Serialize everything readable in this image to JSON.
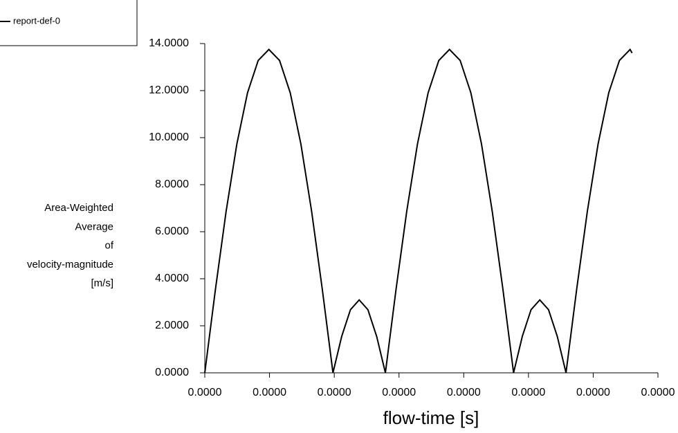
{
  "chart_data": {
    "type": "line",
    "xlabel": "flow-time [s]",
    "ylabel": [
      "Area-Weighted",
      "Average",
      "of",
      "velocity-magnitude",
      "[m/s]"
    ],
    "x": [
      0,
      1.65e-06,
      3.3e-06,
      4.95e-06,
      6.6e-06,
      8.25e-06,
      9.9e-06,
      1.155e-05,
      1.32e-05,
      1.485e-05,
      1.65e-05,
      1.815e-05,
      1.98e-05,
      2.115e-05,
      2.25e-05,
      2.385e-05,
      2.52e-05,
      2.655e-05,
      2.79e-05,
      2.955e-05,
      3.12e-05,
      3.285e-05,
      3.45e-05,
      3.615e-05,
      3.78e-05,
      3.945e-05,
      4.11e-05,
      4.275e-05,
      4.44e-05,
      4.605e-05,
      4.77e-05,
      4.905e-05,
      5.04e-05,
      5.175e-05,
      5.31e-05,
      5.445e-05,
      5.58e-05,
      5.745e-05,
      5.91e-05,
      6.075e-05,
      6.24e-05,
      6.405e-05,
      6.57e-05,
      6.6e-05
    ],
    "series": [
      {
        "name": "report-def-0",
        "color": "#000000",
        "values": [
          0,
          3.559,
          6.875,
          9.723,
          11.908,
          13.281,
          13.75,
          13.281,
          11.908,
          9.723,
          6.875,
          3.559,
          0,
          1.55,
          2.685,
          3.1,
          2.685,
          1.55,
          0,
          3.559,
          6.875,
          9.723,
          11.908,
          13.281,
          13.75,
          13.281,
          11.908,
          9.723,
          6.875,
          3.559,
          0,
          1.55,
          2.685,
          3.1,
          2.685,
          1.55,
          0,
          3.559,
          6.875,
          9.723,
          11.908,
          13.281,
          13.75,
          13.6
        ]
      }
    ],
    "xlim": [
      0,
      7e-05
    ],
    "xticks": [
      {
        "value": 0,
        "label": "0.0000"
      },
      {
        "value": 1e-05,
        "label": "0.0000"
      },
      {
        "value": 2e-05,
        "label": "0.0000"
      },
      {
        "value": 3e-05,
        "label": "0.0000"
      },
      {
        "value": 4e-05,
        "label": "0.0000"
      },
      {
        "value": 5e-05,
        "label": "0.0000"
      },
      {
        "value": 6e-05,
        "label": "0.0000"
      },
      {
        "value": 7e-05,
        "label": "0.0000"
      }
    ],
    "ylim": [
      0,
      14
    ],
    "yticks": [
      {
        "value": 0,
        "label": "0.0000"
      },
      {
        "value": 2,
        "label": "2.0000"
      },
      {
        "value": 4,
        "label": "4.0000"
      },
      {
        "value": 6,
        "label": "6.0000"
      },
      {
        "value": 8,
        "label": "8.0000"
      },
      {
        "value": 10,
        "label": "10.0000"
      },
      {
        "value": 12,
        "label": "12.0000"
      },
      {
        "value": 14,
        "label": "14.0000"
      }
    ],
    "legend": "top-left",
    "grid": false
  }
}
